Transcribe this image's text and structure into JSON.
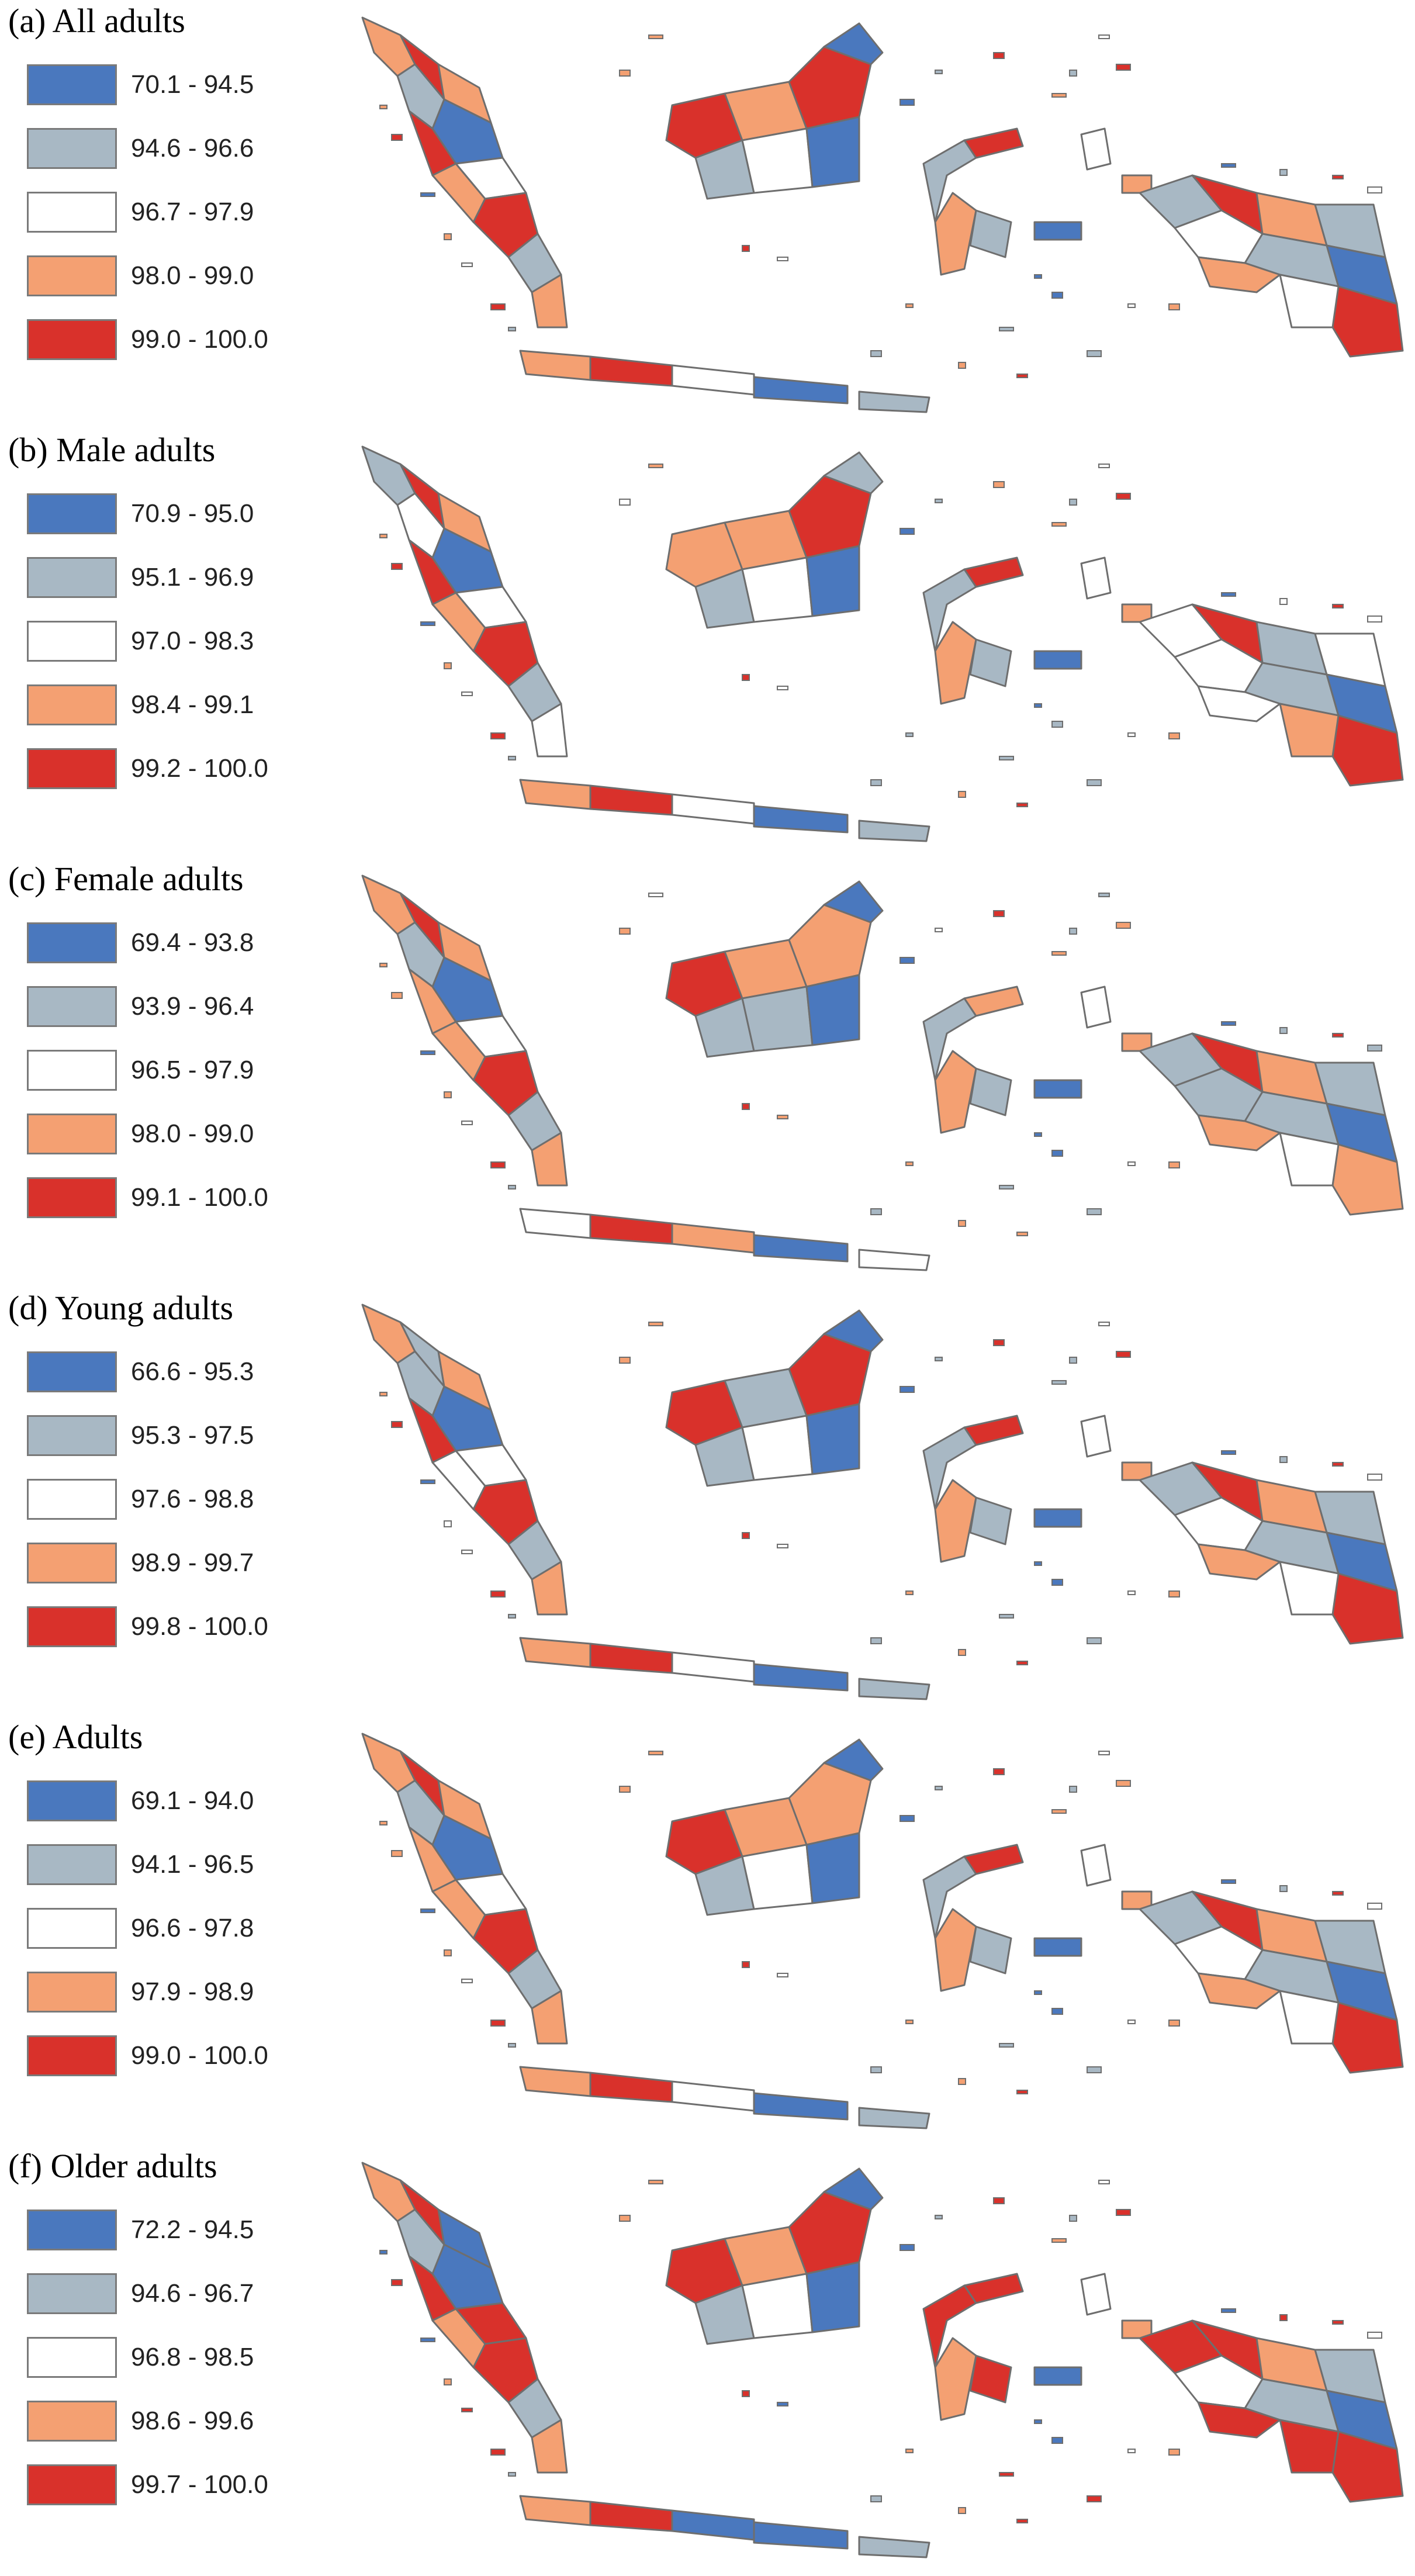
{
  "map_type": "choropleth",
  "region": "Indonesia (districts)",
  "colors": {
    "class1": "#4a78be",
    "class2": "#a8b8c4",
    "class3": "#ffffff",
    "class4": "#f4a072",
    "class5": "#d9312b",
    "outline": "#6e6e6e"
  },
  "panels": [
    {
      "title": "(a) All adults",
      "legend": [
        "70.1 - 94.5",
        "94.6 - 96.6",
        "96.7 - 97.9",
        "98.0 - 99.0",
        "99.0 - 100.0"
      ]
    },
    {
      "title": "(b) Male adults",
      "legend": [
        "70.9 - 95.0",
        "95.1 - 96.9",
        "97.0 - 98.3",
        "98.4 - 99.1",
        "99.2 - 100.0"
      ]
    },
    {
      "title": "(c) Female adults",
      "legend": [
        "69.4 - 93.8",
        "93.9 - 96.4",
        "96.5 - 97.9",
        "98.0 - 99.0",
        "99.1 - 100.0"
      ]
    },
    {
      "title": "(d) Young adults",
      "legend": [
        "66.6 - 95.3",
        "95.3 - 97.5",
        "97.6 - 98.8",
        "98.9 - 99.7",
        "99.8 - 100.0"
      ]
    },
    {
      "title": "(e) Adults",
      "legend": [
        "69.1 - 94.0",
        "94.1 - 96.5",
        "96.6 - 97.8",
        "97.9 - 98.9",
        "99.0 - 100.0"
      ]
    },
    {
      "title": "(f) Older adults",
      "legend": [
        "72.2 - 94.5",
        "94.6 - 96.7",
        "96.8 - 98.5",
        "98.6 - 99.6",
        "99.7 - 100.0"
      ]
    }
  ]
}
